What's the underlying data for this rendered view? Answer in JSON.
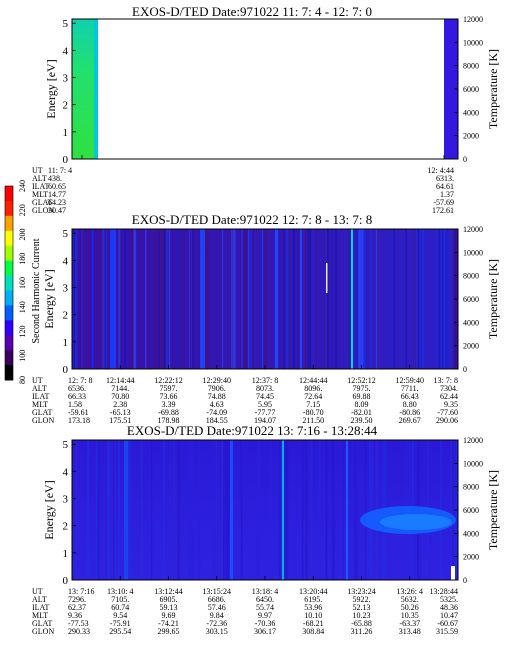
{
  "panels": [
    {
      "title": "EXOS-D/TED   Date:971022  11: 7: 4 - 12: 7: 0",
      "ylabel": "Energy [eV]",
      "y2label": "Temperature [K]",
      "y_ticks": [
        "0",
        "1",
        "2",
        "3",
        "4",
        "5"
      ],
      "y2_ticks": [
        "0",
        "2000",
        "4000",
        "6000",
        "8000",
        "10000",
        "12000"
      ],
      "row_labels": [
        "UT",
        "ALT",
        "ILAT",
        "MLT",
        "GLAT",
        "GLON"
      ],
      "columns": [
        [
          "11: 7: 4",
          "438.",
          "60.65",
          "14.77",
          "64.23",
          "30.47"
        ],
        [
          "12: 4:44",
          "6313.",
          "64.61",
          "1.37",
          "-57.69",
          "172.61"
        ]
      ]
    },
    {
      "title": "EXOS-D/TED   Date:971022  12: 7: 8 - 13: 7: 8",
      "ylabel": "Energy [eV]",
      "y2label": "Temperature [K]",
      "y_ticks": [
        "0",
        "1",
        "2",
        "3",
        "4",
        "5"
      ],
      "y2_ticks": [
        "0",
        "2000",
        "4000",
        "6000",
        "8000",
        "10000",
        "12000"
      ],
      "row_labels": [
        "UT",
        "ALT",
        "ILAT",
        "MLT",
        "GLAT",
        "GLON"
      ],
      "columns": [
        [
          "12: 7: 8",
          "6536.",
          "66.33",
          "1.58",
          "-59.61",
          "173.18"
        ],
        [
          "12:14:44",
          "7144.",
          "70.80",
          "2.38",
          "-65.13",
          "175.51"
        ],
        [
          "12:22:12",
          "7597.",
          "73.66",
          "3.39",
          "-69.88",
          "178.98"
        ],
        [
          "12:29:40",
          "7906.",
          "74.88",
          "4.63",
          "-74.09",
          "184.55"
        ],
        [
          "12:37: 8",
          "8073.",
          "74.45",
          "5.95",
          "-77.77",
          "194.07"
        ],
        [
          "12:44:44",
          "8096.",
          "72.64",
          "7.15",
          "-80.70",
          "211.50"
        ],
        [
          "12:52:12",
          "7975.",
          "69.88",
          "8.09",
          "-82.01",
          "239.50"
        ],
        [
          "12:59:40",
          "7711.",
          "66.43",
          "8.80",
          "-80.86",
          "269.67"
        ],
        [
          "13: 7: 8",
          "7304.",
          "62.44",
          "9.35",
          "-77.60",
          "290.06"
        ]
      ]
    },
    {
      "title": "EXOS-D/TED   Date:971022  13: 7:16 - 13:28:44",
      "ylabel": "Energy [eV]",
      "y2label": "Temperature [K]",
      "y_ticks": [
        "0",
        "1",
        "2",
        "3",
        "4",
        "5"
      ],
      "y2_ticks": [
        "0",
        "2000",
        "4000",
        "6000",
        "8000",
        "10000",
        "12000"
      ],
      "row_labels": [
        "UT",
        "ALT",
        "ILAT",
        "MLT",
        "GLAT",
        "GLON"
      ],
      "columns": [
        [
          "13: 7:16",
          "7296.",
          "62.37",
          "9.36",
          "-77.53",
          "290.33"
        ],
        [
          "13:10: 4",
          "7105.",
          "60.74",
          "9.54",
          "-75.91",
          "295.54"
        ],
        [
          "13:12:44",
          "6905.",
          "59.13",
          "9.69",
          "-74.21",
          "299.65"
        ],
        [
          "13:15:24",
          "6686.",
          "57.46",
          "9.84",
          "-72.36",
          "303.15"
        ],
        [
          "13:18: 4",
          "6450.",
          "55.74",
          "9.97",
          "-70.36",
          "306.17"
        ],
        [
          "13:20:44",
          "6195.",
          "53.96",
          "10.10",
          "-68.21",
          "308.84"
        ],
        [
          "13:23:24",
          "5922.",
          "52.13",
          "10.23",
          "-65.88",
          "311.26"
        ],
        [
          "13:26: 4",
          "5632.",
          "50.26",
          "10.35",
          "-63.37",
          "313.48"
        ],
        [
          "13:28:44",
          "5325.",
          "48.36",
          "10.47",
          "-60.67",
          "315.59"
        ]
      ]
    }
  ],
  "colorbar": {
    "label": "Second Harmonic Current",
    "ticks": [
      "80",
      "100",
      "120",
      "140",
      "160",
      "180",
      "200",
      "220",
      "240"
    ],
    "colors": [
      "#000000",
      "#3a0060",
      "#5a00b0",
      "#3000ff",
      "#0060ff",
      "#00b0ff",
      "#00e0c0",
      "#00ff40",
      "#a0ff00",
      "#ffff00",
      "#ffa000",
      "#ff2000",
      "#ff0000"
    ]
  },
  "chart_data": [
    {
      "type": "heatmap",
      "title": "EXOS-D/TED   Date:971022  11: 7: 4 - 12: 7: 0",
      "xlabel": "UT",
      "ylabel": "Energy [eV]",
      "y2label": "Temperature [K]",
      "ylim": [
        0,
        5
      ],
      "y2lim": [
        0,
        12000
      ],
      "x": [
        "11: 7: 4",
        "12: 4:44"
      ]
    },
    {
      "type": "heatmap",
      "title": "EXOS-D/TED   Date:971022  12: 7: 8 - 13: 7: 8",
      "xlabel": "UT",
      "ylabel": "Energy [eV]",
      "y2label": "Temperature [K]",
      "ylim": [
        0,
        5
      ],
      "y2lim": [
        0,
        12000
      ],
      "x": [
        "12: 7: 8",
        "12:14:44",
        "12:22:12",
        "12:29:40",
        "12:37: 8",
        "12:44:44",
        "12:52:12",
        "12:59:40",
        "13: 7: 8"
      ]
    },
    {
      "type": "heatmap",
      "title": "EXOS-D/TED   Date:971022  13: 7:16 - 13:28:44",
      "xlabel": "UT",
      "ylabel": "Energy [eV]",
      "y2label": "Temperature [K]",
      "ylim": [
        0,
        5
      ],
      "y2lim": [
        0,
        12000
      ],
      "x": [
        "13: 7:16",
        "13:10: 4",
        "13:12:44",
        "13:15:24",
        "13:18: 4",
        "13:20:44",
        "13:23:24",
        "13:26: 4",
        "13:28:44"
      ]
    }
  ]
}
